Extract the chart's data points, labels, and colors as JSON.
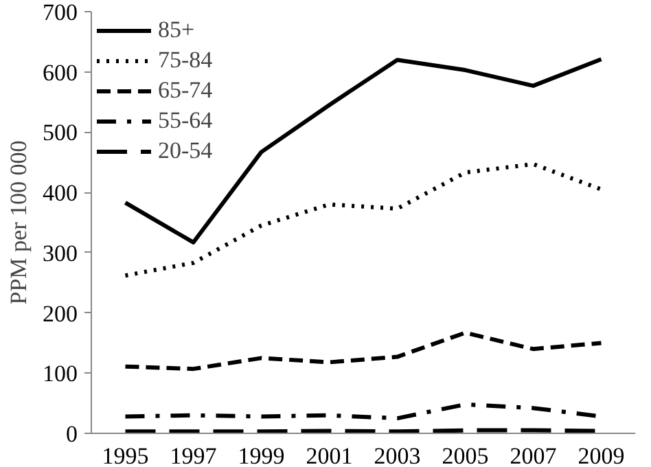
{
  "chart_data": {
    "type": "line",
    "ylabel": "PPM per 100 000",
    "categories": [
      "1995",
      "1997",
      "1999",
      "2001",
      "2003",
      "2005",
      "2007",
      "2009"
    ],
    "ylim": [
      0,
      700
    ],
    "yticks": [
      0,
      100,
      200,
      300,
      400,
      500,
      600,
      700
    ],
    "grid": false,
    "legend": "top left",
    "series": [
      {
        "name": "85+",
        "color": "#000000",
        "line_style": "solid",
        "values": [
          383,
          317,
          467,
          545,
          620,
          603,
          577,
          621
        ]
      },
      {
        "name": "75-84",
        "color": "#000000",
        "line_style": "dotted",
        "values": [
          262,
          283,
          345,
          380,
          373,
          433,
          447,
          405
        ]
      },
      {
        "name": "65-74",
        "color": "#000000",
        "line_style": "dashed",
        "values": [
          111,
          107,
          125,
          118,
          127,
          167,
          140,
          150
        ]
      },
      {
        "name": "55-64",
        "color": "#000000",
        "line_style": "dashdot",
        "values": [
          28,
          30,
          28,
          30,
          25,
          48,
          42,
          28
        ]
      },
      {
        "name": "20-54",
        "color": "#000000",
        "line_style": "longdash",
        "values": [
          3,
          3,
          3,
          4,
          3,
          5,
          5,
          4
        ]
      }
    ]
  }
}
